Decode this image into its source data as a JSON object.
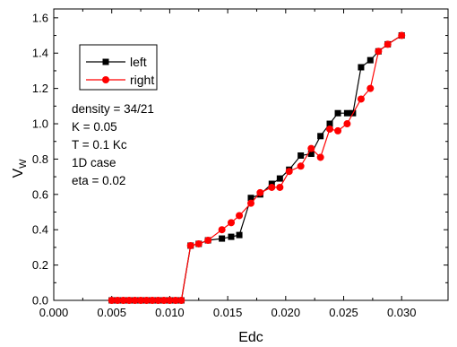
{
  "chart_data": {
    "type": "line",
    "xlabel": "Edc",
    "ylabel": "V",
    "ylabel_sub": "W",
    "xlim": [
      0.0,
      0.034
    ],
    "ylim": [
      0.0,
      1.65
    ],
    "xticks": [
      "0.000",
      "0.005",
      "0.010",
      "0.015",
      "0.020",
      "0.025",
      "0.030"
    ],
    "xtick_values": [
      0.0,
      0.005,
      0.01,
      0.015,
      0.02,
      0.025,
      0.03
    ],
    "yticks": [
      "0.0",
      "0.2",
      "0.4",
      "0.6",
      "0.8",
      "1.0",
      "1.2",
      "1.4",
      "1.6"
    ],
    "ytick_values": [
      0.0,
      0.2,
      0.4,
      0.6,
      0.8,
      1.0,
      1.2,
      1.4,
      1.6
    ],
    "legend_position": "upper-left",
    "annotations": [
      "density = 34/21",
      "K = 0.05",
      "T = 0.1 Kc",
      "1D case",
      "eta = 0.02"
    ],
    "series": [
      {
        "name": "left",
        "color": "#000000",
        "marker": "square",
        "x": [
          0.005,
          0.0055,
          0.006,
          0.0065,
          0.007,
          0.0075,
          0.008,
          0.0085,
          0.009,
          0.0095,
          0.01,
          0.0105,
          0.011,
          0.0118,
          0.0125,
          0.0133,
          0.0145,
          0.0153,
          0.016,
          0.017,
          0.0178,
          0.0188,
          0.0195,
          0.0203,
          0.0213,
          0.0222,
          0.023,
          0.0238,
          0.0245,
          0.0253,
          0.0258,
          0.0265,
          0.0273,
          0.028,
          0.0288,
          0.03
        ],
        "y": [
          0.0,
          0.0,
          0.0,
          0.0,
          0.0,
          0.0,
          0.0,
          0.0,
          0.0,
          0.0,
          0.0,
          0.0,
          0.0,
          0.31,
          0.32,
          0.34,
          0.35,
          0.36,
          0.37,
          0.58,
          0.6,
          0.66,
          0.69,
          0.74,
          0.82,
          0.83,
          0.93,
          1.0,
          1.06,
          1.06,
          1.06,
          1.32,
          1.36,
          1.41,
          1.45,
          1.5
        ]
      },
      {
        "name": "right",
        "color": "#ff0000",
        "marker": "circle",
        "x": [
          0.005,
          0.0055,
          0.006,
          0.0065,
          0.007,
          0.0075,
          0.008,
          0.0085,
          0.009,
          0.0095,
          0.01,
          0.0105,
          0.011,
          0.0118,
          0.0125,
          0.0133,
          0.0145,
          0.0153,
          0.016,
          0.017,
          0.0178,
          0.0188,
          0.0195,
          0.0203,
          0.0213,
          0.0222,
          0.023,
          0.0238,
          0.0245,
          0.0253,
          0.0265,
          0.0273,
          0.028,
          0.0288,
          0.03
        ],
        "y": [
          0.0,
          0.0,
          0.0,
          0.0,
          0.0,
          0.0,
          0.0,
          0.0,
          0.0,
          0.0,
          0.0,
          0.0,
          0.0,
          0.31,
          0.32,
          0.34,
          0.4,
          0.44,
          0.48,
          0.55,
          0.61,
          0.64,
          0.64,
          0.73,
          0.76,
          0.86,
          0.81,
          0.97,
          0.96,
          1.0,
          1.14,
          1.2,
          1.41,
          1.45,
          1.5
        ]
      }
    ]
  }
}
